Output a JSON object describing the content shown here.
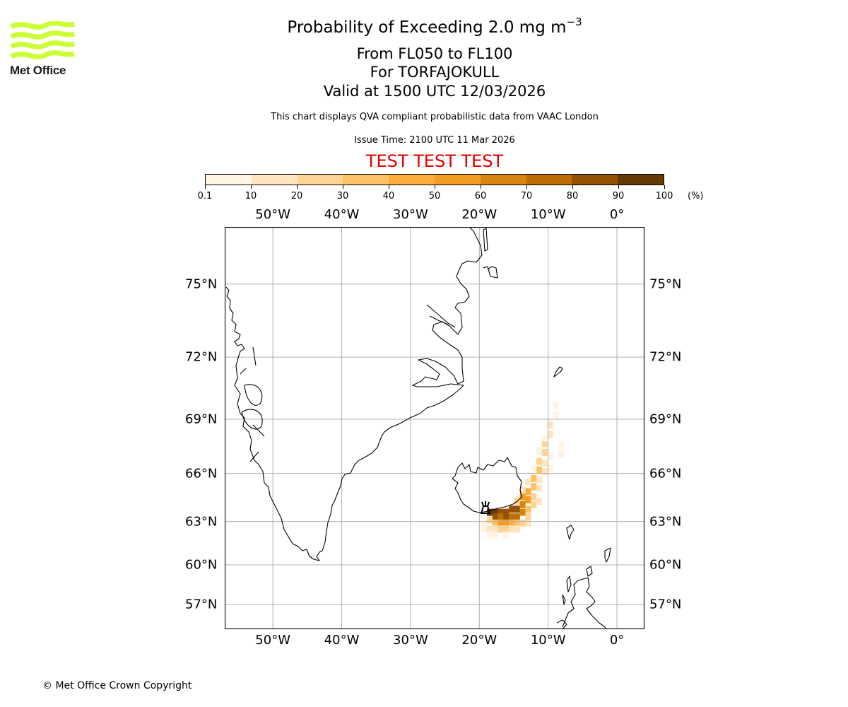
{
  "logo": {
    "text": "Met Office",
    "color": "#ccff33"
  },
  "header": {
    "title_main": "Probability of Exceeding 2.0 mg m",
    "title_superscript": "−3",
    "flight_levels": "From FL050 to FL100",
    "volcano": "For TORFAJOKULL",
    "valid_time": "Valid at 1500 UTC 12/03/2026",
    "description": "This chart displays QVA compliant probabilistic data from VAAC London",
    "issue_time": "Issue Time: 2100 UTC 11 Mar 2026",
    "test_banner": "TEST TEST TEST",
    "test_color": "#e00000"
  },
  "colorbar": {
    "unit": "(%)",
    "ticks": [
      "0.1",
      "10",
      "20",
      "30",
      "40",
      "50",
      "60",
      "70",
      "80",
      "90",
      "100"
    ],
    "colors": [
      "#fff4e3",
      "#fee4bf",
      "#fed494",
      "#fec165",
      "#fdad3a",
      "#f39c22",
      "#d98410",
      "#bd6d06",
      "#955205",
      "#663a03"
    ]
  },
  "map": {
    "lon_labels": [
      "50°W",
      "40°W",
      "30°W",
      "20°W",
      "10°W",
      "0°"
    ],
    "lon_values": [
      -50,
      -40,
      -30,
      -20,
      -10,
      0
    ],
    "lat_labels": [
      "75°N",
      "72°N",
      "69°N",
      "66°N",
      "63°N",
      "60°N",
      "57°N"
    ],
    "lat_values": [
      75,
      72,
      69,
      66,
      63,
      60,
      57
    ],
    "lon_range": [
      -57,
      4
    ],
    "lat_range": [
      55,
      77
    ],
    "gridline_color": "#b0b0b0",
    "volcano_marker": {
      "name": "TORFAJOKULL",
      "lon": -19.1,
      "lat": 63.9,
      "icon": "volcano-icon"
    },
    "plume_cells": [
      {
        "lon": -18.5,
        "lat": 63.6,
        "level": 9
      },
      {
        "lon": -17.7,
        "lat": 63.6,
        "level": 9
      },
      {
        "lon": -16.9,
        "lat": 63.6,
        "level": 8
      },
      {
        "lon": -16.1,
        "lat": 63.6,
        "level": 8
      },
      {
        "lon": -15.3,
        "lat": 63.8,
        "level": 8
      },
      {
        "lon": -14.5,
        "lat": 63.8,
        "level": 8
      },
      {
        "lon": -17.7,
        "lat": 63.3,
        "level": 8
      },
      {
        "lon": -16.9,
        "lat": 63.3,
        "level": 7
      },
      {
        "lon": -16.1,
        "lat": 63.3,
        "level": 8
      },
      {
        "lon": -15.3,
        "lat": 63.3,
        "level": 7
      },
      {
        "lon": -14.5,
        "lat": 63.3,
        "level": 7
      },
      {
        "lon": -13.7,
        "lat": 63.6,
        "level": 6
      },
      {
        "lon": -13.7,
        "lat": 64.1,
        "level": 6
      },
      {
        "lon": -12.9,
        "lat": 64.4,
        "level": 5
      },
      {
        "lon": -13.7,
        "lat": 64.6,
        "level": 5
      },
      {
        "lon": -12.9,
        "lat": 64.9,
        "level": 4
      },
      {
        "lon": -12.1,
        "lat": 65.2,
        "level": 3
      },
      {
        "lon": -12.1,
        "lat": 65.7,
        "level": 3
      },
      {
        "lon": -11.3,
        "lat": 66.2,
        "level": 3
      },
      {
        "lon": -11.3,
        "lat": 66.7,
        "level": 2
      },
      {
        "lon": -10.5,
        "lat": 67.2,
        "level": 2
      },
      {
        "lon": -10.5,
        "lat": 67.7,
        "level": 2
      },
      {
        "lon": -9.7,
        "lat": 68.2,
        "level": 1
      },
      {
        "lon": -9.7,
        "lat": 68.7,
        "level": 1
      },
      {
        "lon": -8.9,
        "lat": 69.2,
        "level": 0
      },
      {
        "lon": -8.9,
        "lat": 69.7,
        "level": 0
      },
      {
        "lon": -8.1,
        "lat": 67.6,
        "level": 0
      },
      {
        "lon": -8.1,
        "lat": 67.1,
        "level": 0
      },
      {
        "lon": -16.9,
        "lat": 62.9,
        "level": 5
      },
      {
        "lon": -16.1,
        "lat": 62.9,
        "level": 5
      },
      {
        "lon": -15.3,
        "lat": 62.9,
        "level": 4
      },
      {
        "lon": -14.5,
        "lat": 62.9,
        "level": 3
      },
      {
        "lon": -17.7,
        "lat": 62.9,
        "level": 3
      },
      {
        "lon": -18.5,
        "lat": 63.1,
        "level": 2
      },
      {
        "lon": -16.9,
        "lat": 62.5,
        "level": 2
      },
      {
        "lon": -16.1,
        "lat": 62.5,
        "level": 2
      },
      {
        "lon": -15.3,
        "lat": 62.5,
        "level": 1
      },
      {
        "lon": -14.5,
        "lat": 62.5,
        "level": 1
      },
      {
        "lon": -18.5,
        "lat": 62.5,
        "level": 1
      },
      {
        "lon": -17.7,
        "lat": 62.5,
        "level": 1
      },
      {
        "lon": -18.5,
        "lat": 62.1,
        "level": 0
      },
      {
        "lon": -17.7,
        "lat": 62.1,
        "level": 0
      },
      {
        "lon": -16.1,
        "lat": 62.1,
        "level": 0
      },
      {
        "lon": -13.7,
        "lat": 62.9,
        "level": 2
      },
      {
        "lon": -12.9,
        "lat": 63.3,
        "level": 2
      },
      {
        "lon": -12.9,
        "lat": 63.8,
        "level": 3
      },
      {
        "lon": -12.1,
        "lat": 64.1,
        "level": 2
      },
      {
        "lon": -12.1,
        "lat": 64.6,
        "level": 2
      },
      {
        "lon": -11.3,
        "lat": 65.1,
        "level": 1
      },
      {
        "lon": -11.3,
        "lat": 65.6,
        "level": 1
      },
      {
        "lon": -10.5,
        "lat": 66.1,
        "level": 1
      },
      {
        "lon": -10.5,
        "lat": 66.6,
        "level": 1
      },
      {
        "lon": -14.5,
        "lat": 64.3,
        "level": 2
      },
      {
        "lon": -13.7,
        "lat": 65.0,
        "level": 1
      },
      {
        "lon": -12.9,
        "lat": 65.5,
        "level": 1
      },
      {
        "lon": -12.1,
        "lat": 66.3,
        "level": 0
      },
      {
        "lon": -11.3,
        "lat": 67.3,
        "level": 0
      },
      {
        "lon": -10.5,
        "lat": 68.0,
        "level": 0
      },
      {
        "lon": -9.7,
        "lat": 67.0,
        "level": 0
      },
      {
        "lon": -9.7,
        "lat": 66.3,
        "level": 0
      },
      {
        "lon": -12.9,
        "lat": 62.9,
        "level": 1
      },
      {
        "lon": -11.3,
        "lat": 64.3,
        "level": 1
      },
      {
        "lon": -19.3,
        "lat": 62.9,
        "level": 0
      },
      {
        "lon": -19.3,
        "lat": 62.5,
        "level": 0
      }
    ]
  },
  "footer": {
    "copyright": "© Met Office Crown Copyright"
  }
}
